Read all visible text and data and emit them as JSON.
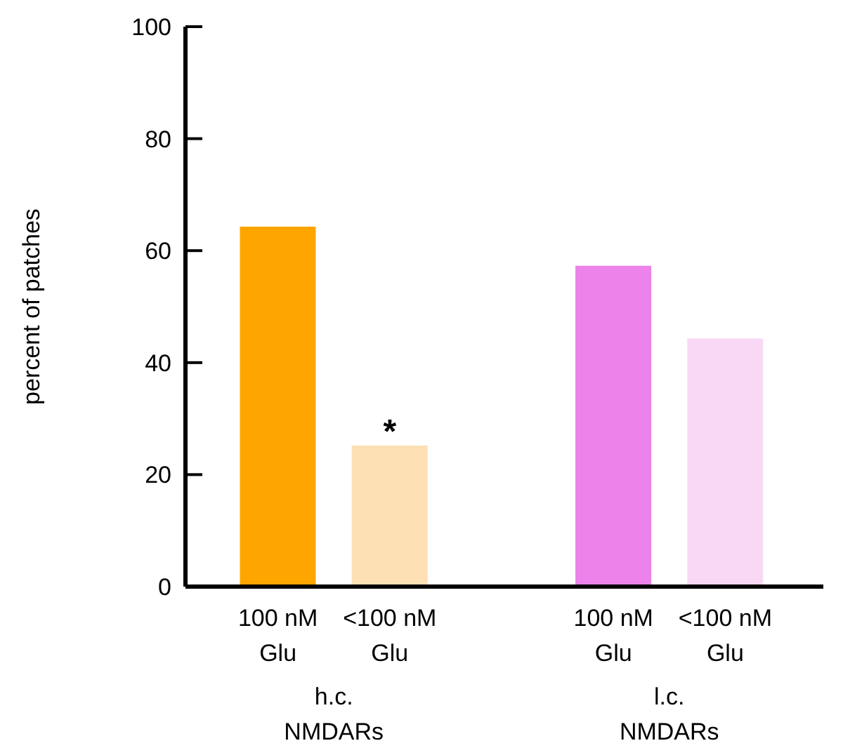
{
  "chart_data": {
    "type": "bar",
    "ylabel": "percent of patches",
    "categories": [
      "100 nM\nGlu",
      "<100 nM\nGlu",
      null,
      "100 nM\nGlu",
      "<100 nM\nGlu"
    ],
    "values": [
      64.3,
      25.2,
      null,
      57.3,
      44.3
    ],
    "colors": [
      "#ffa500",
      "#fde0b3",
      "#ffffff",
      "#ec82ea",
      "#f9d8f6"
    ],
    "ylim": [
      0,
      100
    ],
    "yticks": [
      0,
      20,
      40,
      60,
      80,
      100
    ],
    "grid": false,
    "legend": false,
    "annotations": [
      {
        "text": "*",
        "x": "<100 nM\nGlu",
        "y": 25.2
      },
      "h.c.\nNMDARs",
      "l.c.\nNMDARs"
    ]
  }
}
